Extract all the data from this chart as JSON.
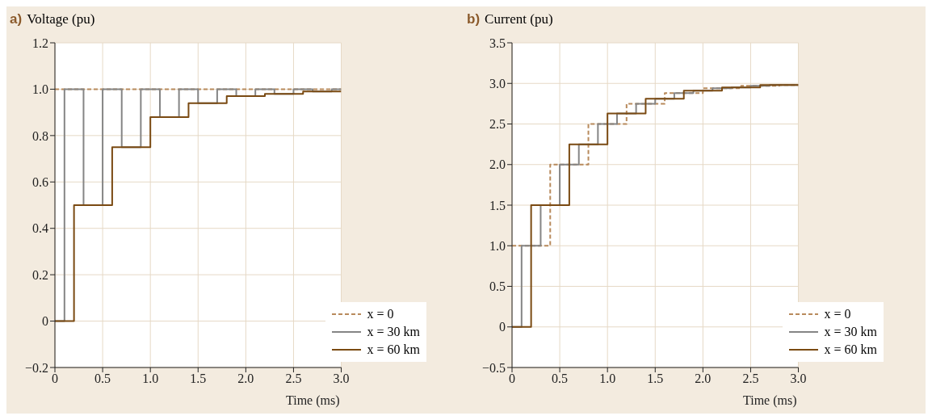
{
  "chart_data": [
    {
      "type": "step",
      "title": "a)",
      "ylabel": "Voltage (pu)",
      "xlabel": "Time (ms)",
      "xlim": [
        0,
        3
      ],
      "xticks": [
        0,
        0.5,
        {
          "value": 1,
          "label": "1.0"
        },
        1.5,
        {
          "value": 2,
          "label": "2.0"
        },
        2.5,
        {
          "value": 3,
          "label": "3.0"
        }
      ],
      "ylim": [
        -0.2,
        1.2
      ],
      "yticks": [
        {
          "value": -0.2,
          "label": "−0.2"
        },
        0,
        0.2,
        0.4,
        0.6,
        0.8,
        {
          "value": 1,
          "label": "1.0"
        },
        1.2
      ],
      "grid": true,
      "legend": "bottom right",
      "series": [
        {
          "name": "x = 0",
          "color": "#b88a5c",
          "line_style": "dashed",
          "x": [
            0,
            3
          ],
          "values": [
            1,
            1
          ]
        },
        {
          "name": "x = 30 km",
          "color": "#858585",
          "line_style": "solid",
          "x": [
            0,
            0.1,
            0.3,
            0.5,
            0.7,
            0.9,
            1.1,
            1.3,
            1.5,
            1.7,
            1.9,
            2.1,
            2.3,
            2.5,
            2.7,
            2.9,
            3.0
          ],
          "values": [
            0,
            1,
            0.5,
            1,
            0.75,
            1,
            0.88,
            1,
            0.94,
            1,
            0.97,
            1,
            0.98,
            1,
            0.99,
            1,
            1
          ]
        },
        {
          "name": "x = 60 km",
          "color": "#7a4a12",
          "line_style": "solid",
          "x": [
            0,
            0.2,
            0.6,
            1.0,
            1.4,
            1.8,
            2.2,
            2.6,
            3.0
          ],
          "values": [
            0,
            0.5,
            0.75,
            0.88,
            0.94,
            0.97,
            0.98,
            0.99,
            0.99
          ]
        }
      ]
    },
    {
      "type": "step",
      "title": "b)",
      "ylabel": "Current (pu)",
      "xlabel": "Time (ms)",
      "xlim": [
        0,
        3
      ],
      "xticks": [
        0,
        0.5,
        {
          "value": 1,
          "label": "1.0"
        },
        1.5,
        {
          "value": 2,
          "label": "2.0"
        },
        2.5,
        {
          "value": 3,
          "label": "3.0"
        }
      ],
      "ylim": [
        -0.5,
        3.5
      ],
      "yticks": [
        {
          "value": -0.5,
          "label": "−0.5"
        },
        0,
        0.5,
        {
          "value": 1,
          "label": "1.0"
        },
        1.5,
        {
          "value": 2,
          "label": "2.0"
        },
        2.5,
        {
          "value": 3,
          "label": "3.0"
        },
        3.5
      ],
      "grid": true,
      "legend": "bottom right",
      "series": [
        {
          "name": "x = 0",
          "color": "#b88a5c",
          "line_style": "dashed",
          "x": [
            0,
            0.4,
            0.8,
            1.2,
            1.6,
            2.0,
            2.4,
            2.8,
            3.0
          ],
          "values": [
            1,
            2,
            2.5,
            2.75,
            2.88,
            2.94,
            2.97,
            2.98,
            2.98
          ]
        },
        {
          "name": "x = 30 km",
          "color": "#858585",
          "line_style": "solid",
          "x": [
            0,
            0.1,
            0.3,
            0.5,
            0.7,
            0.9,
            1.1,
            1.3,
            1.5,
            1.7,
            1.9,
            2.1,
            2.3,
            2.5,
            2.7,
            2.9,
            3.0
          ],
          "values": [
            0,
            1,
            1.5,
            2,
            2.25,
            2.5,
            2.63,
            2.75,
            2.81,
            2.88,
            2.91,
            2.94,
            2.95,
            2.97,
            2.98,
            2.98,
            2.98
          ]
        },
        {
          "name": "x = 60 km",
          "color": "#7a4a12",
          "line_style": "solid",
          "x": [
            0,
            0.2,
            0.6,
            1.0,
            1.4,
            1.8,
            2.2,
            2.6,
            3.0
          ],
          "values": [
            0,
            1.5,
            2.25,
            2.63,
            2.81,
            2.91,
            2.95,
            2.98,
            2.98
          ]
        }
      ]
    }
  ]
}
